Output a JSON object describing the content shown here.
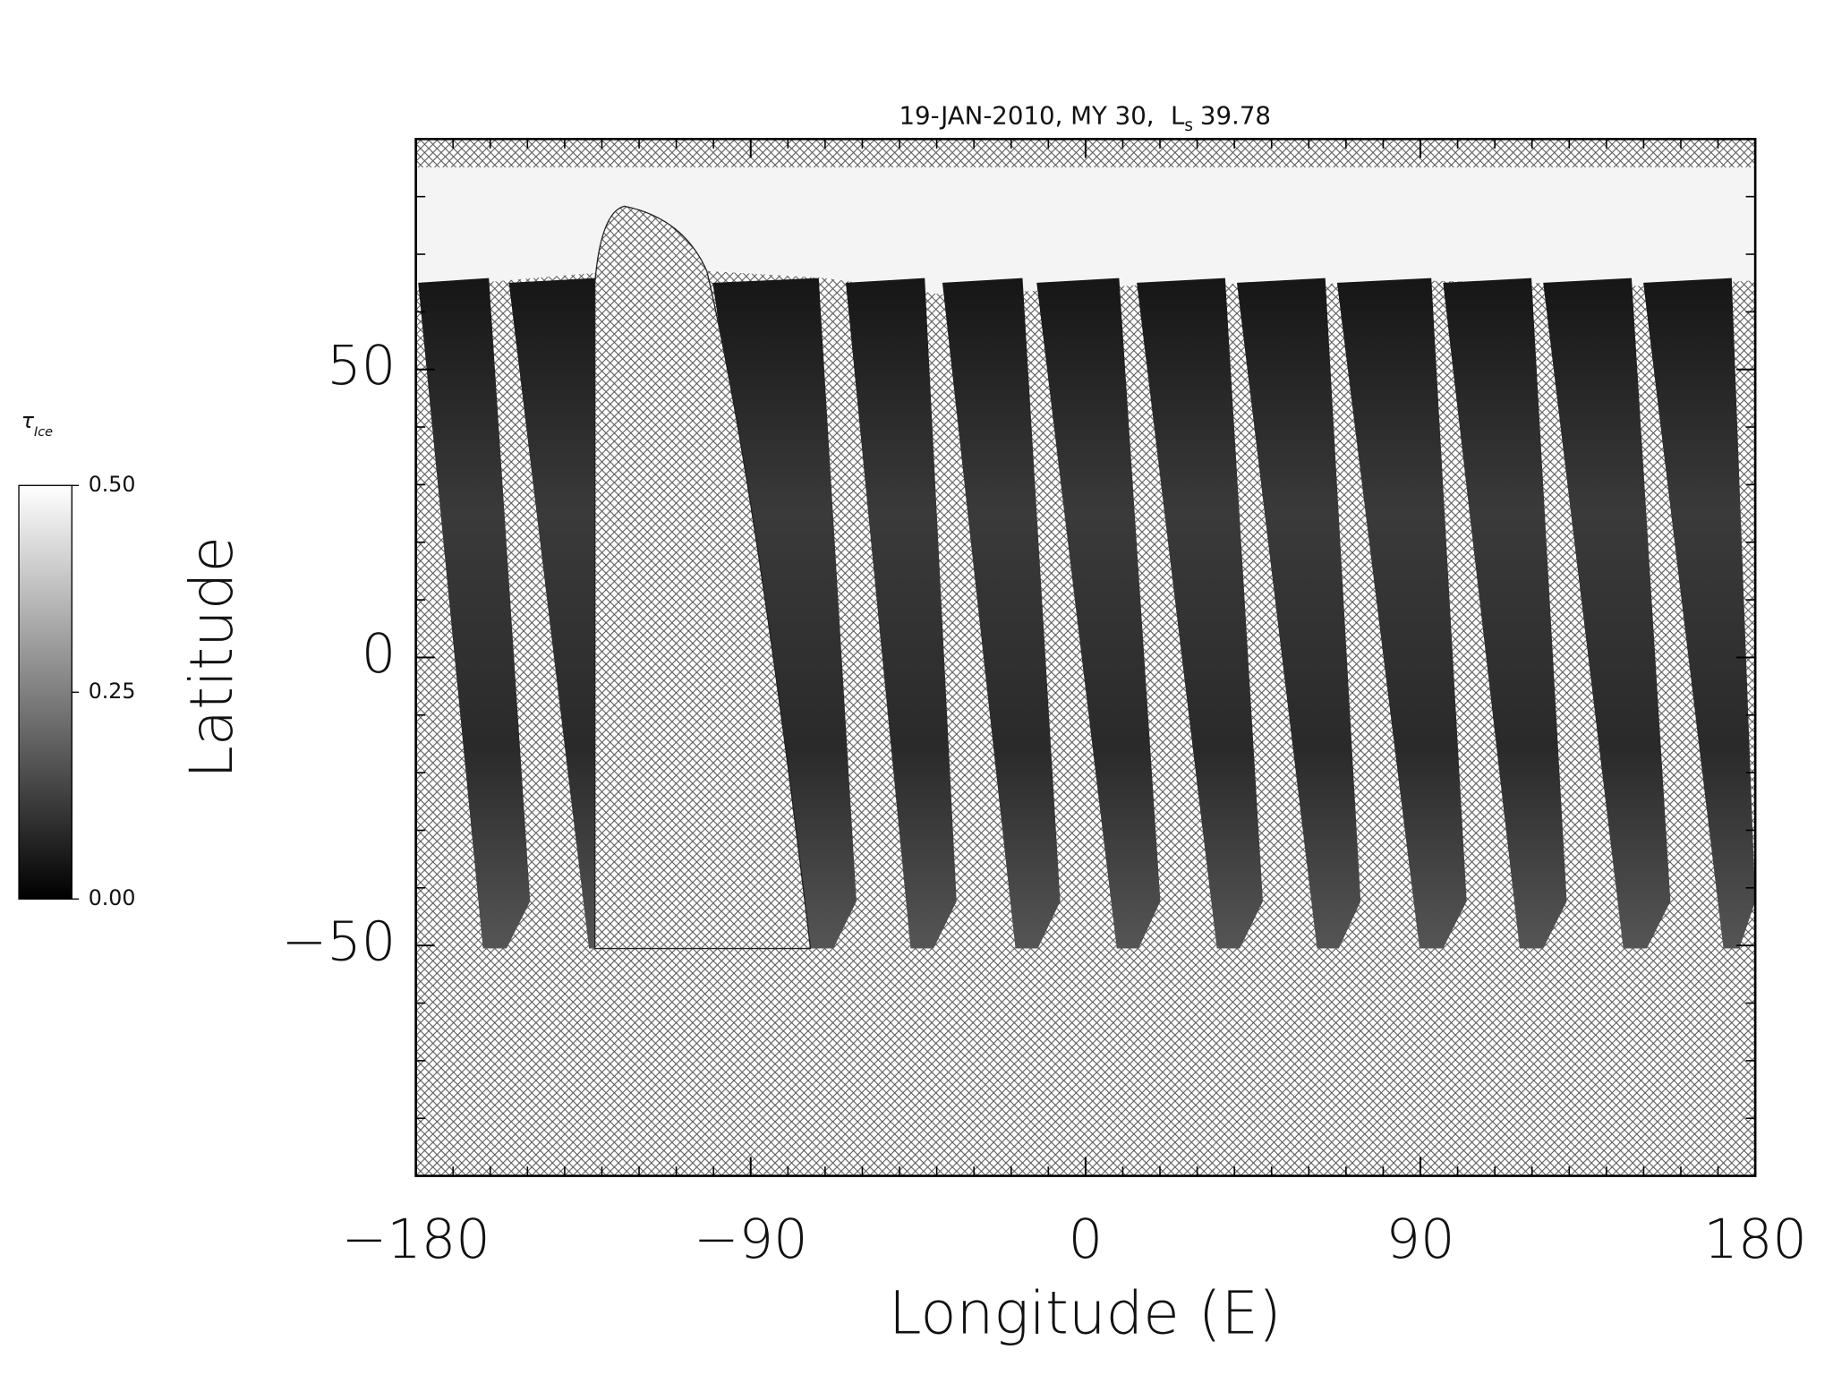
{
  "chart_data": {
    "type": "heatmap",
    "title": "19-JAN-2010, MY 30,",
    "title_symbol": "L",
    "title_subscript": "s",
    "solar_longitude": 39.78,
    "x_label": "Longitude (E)",
    "y_label": "Latitude",
    "xlim": [
      -180,
      180
    ],
    "ylim": [
      -90,
      90
    ],
    "xticks": [
      {
        "value": -180,
        "label": "−180"
      },
      {
        "value": -90,
        "label": "−90"
      },
      0,
      90,
      180
    ],
    "yticks": [
      {
        "value": -50,
        "label": "−50"
      },
      0,
      50
    ],
    "xminorticks": [
      -170,
      -160,
      -150,
      -140,
      -130,
      -120,
      -110,
      -100,
      -80,
      -70,
      -60,
      -50,
      -40,
      -30,
      -20,
      -10,
      10,
      20,
      30,
      40,
      50,
      60,
      70,
      80,
      100,
      110,
      120,
      130,
      140,
      150,
      160,
      170
    ],
    "yminorticks": [
      -80,
      -70,
      -60,
      -40,
      -30,
      -20,
      -10,
      10,
      20,
      30,
      40,
      60,
      70,
      80
    ],
    "colormap": [
      "#000000",
      "#ffffff"
    ],
    "colorbar": {
      "label": "τ",
      "label_subscript": "Ice",
      "lim": [
        0,
        0.5
      ],
      "ticks": [
        {
          "value": 0,
          "label": "0.00"
        },
        {
          "value": 0.25,
          "label": "0.25"
        },
        {
          "value": 0.5,
          "label": "0.50"
        }
      ]
    }
  }
}
